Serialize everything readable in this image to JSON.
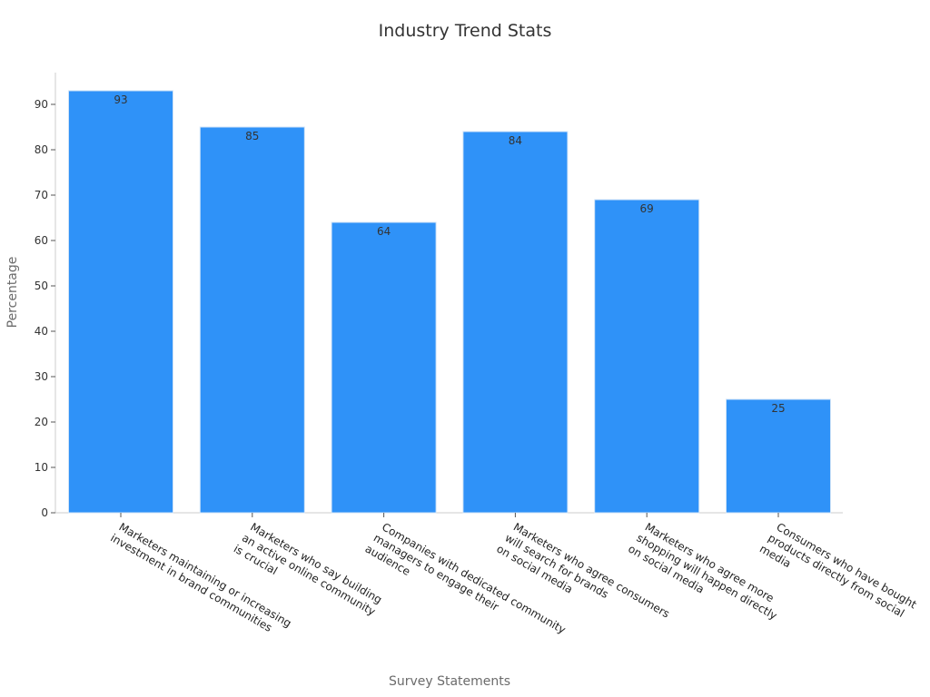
{
  "chart_data": {
    "type": "bar",
    "title": "Industry Trend Stats",
    "xlabel": "Survey Statements",
    "ylabel": "Percentage",
    "ylim": [
      0,
      97
    ],
    "yticks": [
      0,
      10,
      20,
      30,
      40,
      50,
      60,
      70,
      80,
      90
    ],
    "grid": false,
    "categories": [
      [
        "Marketers maintaining or increasing",
        "investment in brand communities"
      ],
      [
        "Marketers who say building",
        "an active online community",
        "is crucial"
      ],
      [
        "Companies with dedicated community",
        "managers to engage their",
        "audience"
      ],
      [
        "Marketers who agree consumers",
        "will search for brands",
        "on social media"
      ],
      [
        "Marketers who agree more",
        "shopping will happen directly",
        "on social media"
      ],
      [
        "Consumers who have bought",
        "products directly from social",
        "media"
      ]
    ],
    "values": [
      93,
      85,
      64,
      84,
      69,
      25
    ],
    "data_labels": [
      "93",
      "85",
      "64",
      "84",
      "69",
      "25"
    ],
    "bar_color": "#2f92f8"
  }
}
